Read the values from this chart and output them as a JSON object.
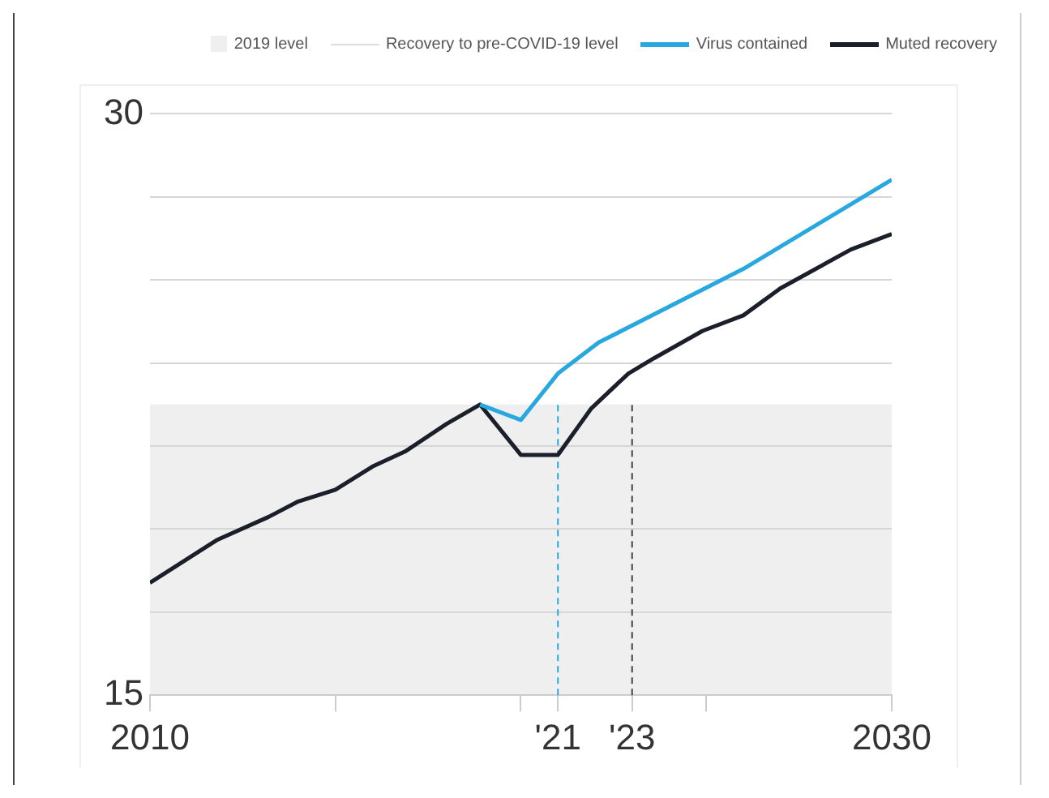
{
  "chart_data": {
    "type": "line",
    "xlim": [
      2010,
      2030
    ],
    "xticks": [
      2010,
      {
        "value": 2015,
        "label": null
      },
      {
        "value": 2020,
        "label": null
      },
      {
        "value": 2021,
        "label": "'21"
      },
      {
        "value": 2023,
        "label": "'23"
      },
      {
        "value": 2025,
        "label": null
      },
      2030
    ],
    "ylim": [
      15,
      30
    ],
    "yticks": [
      15,
      {
        "value": 17.14,
        "label": null
      },
      {
        "value": 19.29,
        "label": null
      },
      {
        "value": 21.43,
        "label": null
      },
      {
        "value": 23.57,
        "label": null
      },
      {
        "value": 25.71,
        "label": null
      },
      {
        "value": 27.86,
        "label": null
      },
      30
    ],
    "grid": "y",
    "legend": "top",
    "marker": "none",
    "line_style": "solid",
    "bands": [
      {
        "axis": "y",
        "from": 15,
        "to": 22.5,
        "label": "2019 level",
        "color": "#efefef"
      }
    ],
    "ref_lines": [
      {
        "axis": "x",
        "value": 2021,
        "color": "#29a8e0",
        "line_style": "dashed"
      },
      {
        "axis": "x",
        "value": 2023,
        "color": "#444444",
        "line_style": "dashed"
      }
    ],
    "annotations": [
      "Recovery to pre-COVID-19 level"
    ],
    "series": [
      {
        "name": "Virus contained",
        "color": "#29a8e0",
        "x": [
          2018.9,
          2020,
          2021,
          2022.1,
          2026,
          2030
        ],
        "values": [
          22.5,
          22.1,
          23.3,
          24.1,
          26,
          28.3
        ]
      },
      {
        "name": "Muted recovery",
        "color": "#1b1f2a",
        "x": [
          2010,
          2011.8,
          2013.2,
          2014,
          2015,
          2016,
          2016.9,
          2018,
          2018.9,
          2020,
          2021,
          2021.9,
          2022.9,
          2023.6,
          2024.9,
          2026,
          2027,
          2028.9,
          2030
        ],
        "values": [
          17.9,
          19,
          19.6,
          20,
          20.3,
          20.9,
          21.3,
          22,
          22.5,
          21.2,
          21.2,
          22.4,
          23.3,
          23.7,
          24.4,
          24.8,
          25.5,
          26.5,
          26.9
        ]
      }
    ]
  }
}
